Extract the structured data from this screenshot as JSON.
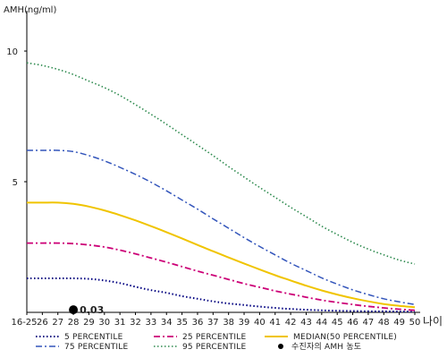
{
  "chart_data": {
    "type": "line",
    "ylabel": "AMH(ng/ml)",
    "xlabel": "나이",
    "x_labels": [
      "16-25",
      "26",
      "27",
      "28",
      "29",
      "30",
      "31",
      "32",
      "33",
      "34",
      "35",
      "36",
      "37",
      "38",
      "39",
      "40",
      "41",
      "42",
      "43",
      "44",
      "45",
      "46",
      "47",
      "48",
      "49",
      "50"
    ],
    "y_ticks": [
      5,
      10
    ],
    "ylim": [
      0,
      11.2
    ],
    "grid": false,
    "series": [
      {
        "name": "5 PERCENTILE",
        "color": "#000080",
        "dash": "1.5,2.5",
        "width": 2,
        "values": [
          1.3,
          1.3,
          1.3,
          1.3,
          1.28,
          1.22,
          1.12,
          0.98,
          0.85,
          0.75,
          0.62,
          0.52,
          0.42,
          0.34,
          0.28,
          0.22,
          0.17,
          0.13,
          0.1,
          0.08,
          0.06,
          0.05,
          0.04,
          0.04,
          0.03,
          0.03
        ]
      },
      {
        "name": "25 PERCENTILE",
        "color": "#cc0077",
        "dash": "7,3,2,3",
        "width": 1.8,
        "values": [
          2.65,
          2.65,
          2.65,
          2.63,
          2.58,
          2.5,
          2.38,
          2.24,
          2.08,
          1.92,
          1.75,
          1.58,
          1.42,
          1.26,
          1.1,
          0.96,
          0.82,
          0.7,
          0.58,
          0.47,
          0.38,
          0.3,
          0.23,
          0.17,
          0.12,
          0.08
        ]
      },
      {
        "name": "MEDIAN(50 PERCENTILE)",
        "color": "#f0c400",
        "dash": "",
        "width": 2,
        "values": [
          4.2,
          4.2,
          4.2,
          4.15,
          4.05,
          3.9,
          3.72,
          3.52,
          3.3,
          3.07,
          2.83,
          2.58,
          2.34,
          2.1,
          1.87,
          1.64,
          1.42,
          1.22,
          1.02,
          0.84,
          0.68,
          0.54,
          0.42,
          0.32,
          0.25,
          0.2
        ]
      },
      {
        "name": "75 PERCENTILE",
        "color": "#3355bb",
        "dash": "7,3,2,3",
        "width": 1.5,
        "values": [
          6.2,
          6.2,
          6.2,
          6.15,
          6.0,
          5.8,
          5.55,
          5.28,
          4.98,
          4.65,
          4.3,
          3.95,
          3.58,
          3.22,
          2.86,
          2.52,
          2.2,
          1.88,
          1.6,
          1.32,
          1.08,
          0.86,
          0.68,
          0.52,
          0.4,
          0.3
        ]
      },
      {
        "name": "95 PERCENTILE",
        "color": "#2d8a4e",
        "dash": "1.5,2.5",
        "width": 1.6,
        "values": [
          9.55,
          9.45,
          9.3,
          9.1,
          8.85,
          8.6,
          8.3,
          7.95,
          7.58,
          7.2,
          6.8,
          6.4,
          6.0,
          5.58,
          5.18,
          4.78,
          4.4,
          4.02,
          3.66,
          3.3,
          2.98,
          2.68,
          2.42,
          2.2,
          2.0,
          1.85
        ]
      }
    ],
    "points": [
      {
        "name": "수진자의 AMH 농도",
        "x": "28",
        "y": 0.03,
        "label": "0.03",
        "color": "#000000"
      }
    ],
    "legend": {
      "position": "bottom",
      "items": [
        {
          "label": "5 PERCENTILE",
          "series": 0
        },
        {
          "label": "25 PERCENTILE",
          "series": 1
        },
        {
          "label": "MEDIAN(50 PERCENTILE)",
          "series": 2
        },
        {
          "label": "75 PERCENTILE",
          "series": 3
        },
        {
          "label": "95 PERCENTILE",
          "series": 4
        },
        {
          "label": "수진자의 AMH 농도",
          "marker": "dot"
        }
      ]
    }
  }
}
